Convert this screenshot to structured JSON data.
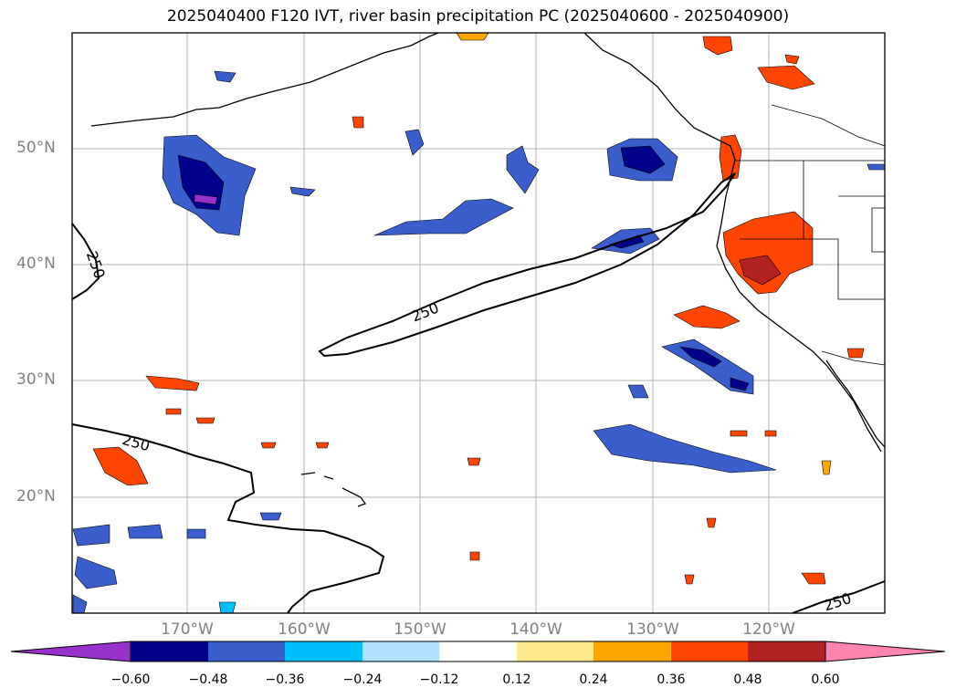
{
  "title": "2025040400 F120 IVT, river basin precipitation PC (2025040600 - 2025040900)",
  "latitude_labels": [
    "50°N",
    "40°N",
    "30°N",
    "20°N"
  ],
  "longitude_labels": [
    "170°W",
    "160°W",
    "150°W",
    "140°W",
    "130°W",
    "120°W"
  ],
  "contour_labels": [
    "250",
    "250",
    "250",
    "250"
  ],
  "colorbar": {
    "tick_labels": [
      "−0.60",
      "−0.48",
      "−0.36",
      "−0.24",
      "−0.12",
      "0.12",
      "0.24",
      "0.36",
      "0.48",
      "0.60"
    ],
    "colors": [
      "#9932cc",
      "#00008b",
      "#3a5fcd",
      "#00bfff",
      "#b0e2ff",
      "#ffffff",
      "#ffea8c",
      "#ffa500",
      "#ff4500",
      "#b22222",
      "#ff85b0"
    ]
  },
  "colors": {
    "grid": "#b0b0b0",
    "coast": "#000000",
    "neg_strong": "#00008b",
    "neg_mid": "#3a5fcd",
    "neg_light": "#00bfff",
    "pos_light": "#ffea8c",
    "pos_mid": "#ffa500",
    "pos_strong": "#ff4500",
    "pos_dark": "#b22222",
    "purple": "#9932cc"
  }
}
